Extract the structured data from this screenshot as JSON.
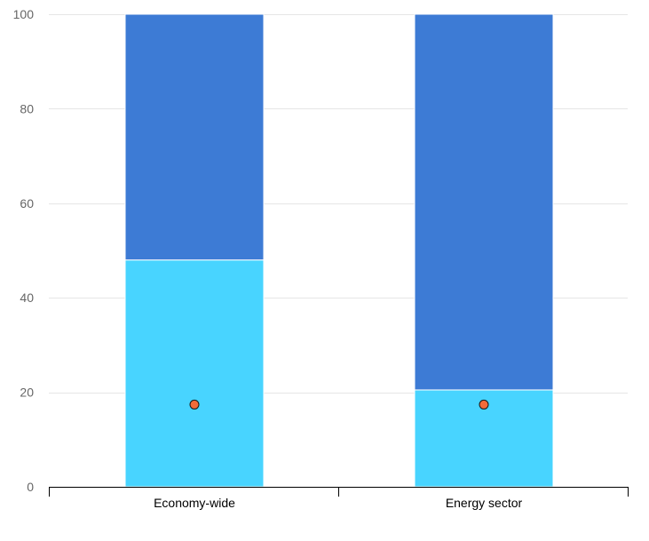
{
  "chart_data": {
    "type": "bar",
    "stacked": true,
    "categories": [
      "Economy-wide",
      "Energy sector"
    ],
    "series": [
      {
        "values": [
          48,
          20.5
        ],
        "color": "#48D4FF"
      },
      {
        "values": [
          52,
          79.5
        ],
        "color": "#3D7BD5"
      }
    ],
    "markers": {
      "values": [
        17.4,
        17.4
      ],
      "color": "#F26B3A",
      "stroke": "#1a1a1a"
    },
    "yticks": [
      0,
      20,
      40,
      60,
      80,
      100
    ],
    "ytick_labels": [
      "0",
      "20",
      "40",
      "60",
      "80",
      "100"
    ],
    "ylim": [
      0,
      100
    ],
    "grid": true,
    "gridColor": "#e6e6e6",
    "axisColor": "#000000"
  }
}
